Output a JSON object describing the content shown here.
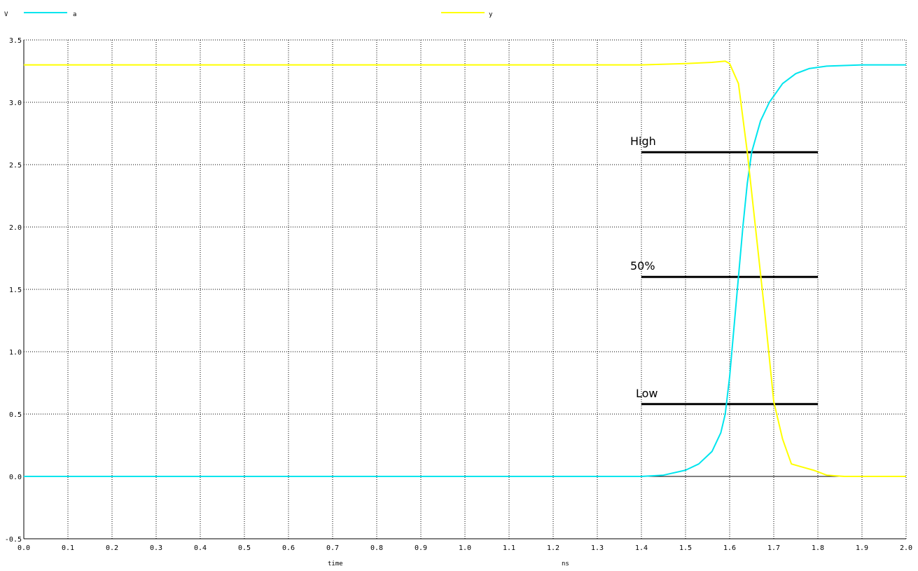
{
  "chart_data": {
    "type": "line",
    "ylabel": "V",
    "xlabel": "time",
    "xunit": "ns",
    "xlim": [
      0.0,
      2.0
    ],
    "ylim": [
      -0.5,
      3.5
    ],
    "grid": true,
    "legend_placement": "top",
    "x_ticks": [
      "0.0",
      "0.1",
      "0.2",
      "0.3",
      "0.4",
      "0.5",
      "0.6",
      "0.7",
      "0.8",
      "0.9",
      "1.0",
      "1.1",
      "1.2",
      "1.3",
      "1.4",
      "1.5",
      "1.6",
      "1.7",
      "1.8",
      "1.9",
      "2.0"
    ],
    "y_ticks": [
      "-0.5",
      "0.0",
      "0.5",
      "1.0",
      "1.5",
      "2.0",
      "2.5",
      "3.0",
      "3.5"
    ],
    "series": [
      {
        "name": "a",
        "color": "#00e5ee",
        "points": [
          [
            0.0,
            0.0
          ],
          [
            1.4,
            0.0
          ],
          [
            1.45,
            0.01
          ],
          [
            1.5,
            0.05
          ],
          [
            1.53,
            0.1
          ],
          [
            1.56,
            0.2
          ],
          [
            1.58,
            0.35
          ],
          [
            1.59,
            0.5
          ],
          [
            1.6,
            0.8
          ],
          [
            1.61,
            1.2
          ],
          [
            1.62,
            1.6
          ],
          [
            1.63,
            2.0
          ],
          [
            1.64,
            2.35
          ],
          [
            1.65,
            2.6
          ],
          [
            1.67,
            2.85
          ],
          [
            1.69,
            3.0
          ],
          [
            1.72,
            3.15
          ],
          [
            1.75,
            3.23
          ],
          [
            1.78,
            3.27
          ],
          [
            1.82,
            3.29
          ],
          [
            1.9,
            3.3
          ],
          [
            2.0,
            3.3
          ]
        ]
      },
      {
        "name": "y",
        "color": "#ffff00",
        "points": [
          [
            0.0,
            3.3
          ],
          [
            1.4,
            3.3
          ],
          [
            1.5,
            3.31
          ],
          [
            1.56,
            3.32
          ],
          [
            1.59,
            3.33
          ],
          [
            1.6,
            3.31
          ],
          [
            1.62,
            3.15
          ],
          [
            1.64,
            2.6
          ],
          [
            1.66,
            1.95
          ],
          [
            1.68,
            1.3
          ],
          [
            1.7,
            0.6
          ],
          [
            1.72,
            0.3
          ],
          [
            1.74,
            0.1
          ],
          [
            1.76,
            0.08
          ],
          [
            1.79,
            0.05
          ],
          [
            1.82,
            0.01
          ],
          [
            1.86,
            0.0
          ],
          [
            2.0,
            0.0
          ]
        ]
      }
    ],
    "annotations": [
      {
        "label": "High",
        "y": 2.6,
        "x_start": 1.4,
        "x_end": 1.8
      },
      {
        "label": "50%",
        "y": 1.6,
        "x_start": 1.4,
        "x_end": 1.8
      },
      {
        "label": "Low",
        "y": 0.58,
        "x_start": 1.4,
        "x_end": 1.8
      }
    ],
    "baseline": {
      "y": 0.0,
      "x_start": 1.27,
      "x_end": 1.86
    }
  }
}
